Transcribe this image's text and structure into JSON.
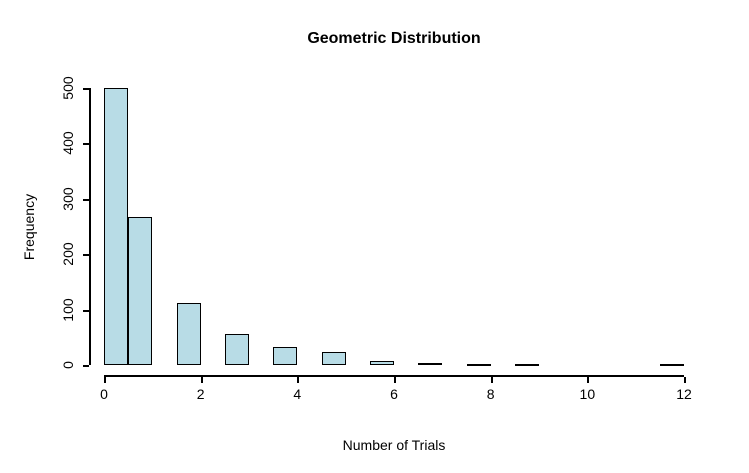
{
  "chart_data": {
    "type": "bar",
    "title": "Geometric Distribution",
    "xlabel": "Number of Trials",
    "ylabel": "Frequency",
    "xlim": [
      0,
      12
    ],
    "ylim": [
      0,
      500
    ],
    "x_ticks": [
      0,
      2,
      4,
      6,
      8,
      10,
      12
    ],
    "y_ticks": [
      0,
      100,
      200,
      300,
      400,
      500
    ],
    "bar_fill_color": "#B8DCE6",
    "bar_border_color": "#000000",
    "grid": "off",
    "legend": "none",
    "bars": [
      {
        "x0": 0.0,
        "x1": 0.5,
        "value": 500
      },
      {
        "x0": 0.5,
        "x1": 1.0,
        "value": 268
      },
      {
        "x0": 1.5,
        "x1": 2.0,
        "value": 112
      },
      {
        "x0": 2.5,
        "x1": 3.0,
        "value": 56
      },
      {
        "x0": 3.5,
        "x1": 4.0,
        "value": 32
      },
      {
        "x0": 4.5,
        "x1": 5.0,
        "value": 23
      },
      {
        "x0": 5.5,
        "x1": 6.0,
        "value": 7
      },
      {
        "x0": 6.5,
        "x1": 7.0,
        "value": 4
      },
      {
        "x0": 7.5,
        "x1": 8.0,
        "value": 2
      },
      {
        "x0": 8.5,
        "x1": 9.0,
        "value": 2
      },
      {
        "x0": 11.5,
        "x1": 12.0,
        "value": 2
      }
    ]
  }
}
